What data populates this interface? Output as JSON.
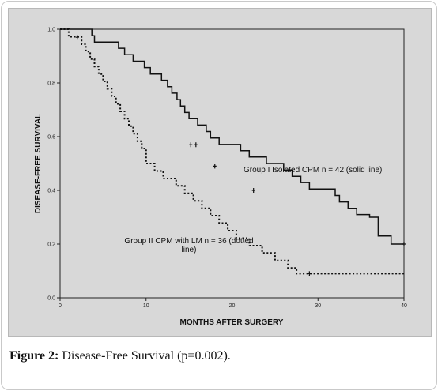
{
  "caption": {
    "label": "Figure 2:",
    "text": "Disease-Free Survival (p=0.002)."
  },
  "chart_data": {
    "type": "line",
    "title": "",
    "xlabel": "MONTHS AFTER SURGERY",
    "ylabel": "DISEASE-FREE SURVIVAL",
    "xlim": [
      0,
      40
    ],
    "ylim": [
      0,
      1.0
    ],
    "xticks": [
      0,
      10,
      20,
      30,
      40
    ],
    "yticks": [
      0.0,
      0.2,
      0.4,
      0.6,
      0.8,
      1.0
    ],
    "ytick_labels": [
      "0.0",
      "0.2",
      "0.4",
      "0.6",
      "0.8",
      "1.0"
    ],
    "grid": false,
    "annotations": [
      {
        "lines": [
          "Group I Isolated CPM n = 42 (solid line)"
        ]
      },
      {
        "lines": [
          "Group II CPM with LM n = 36 (dotted",
          "line)"
        ]
      }
    ],
    "series": [
      {
        "name": "Group I Isolated CPM n = 42",
        "style": "solid",
        "points": [
          [
            0,
            1.0
          ],
          [
            3.7,
            1.0
          ],
          [
            3.7,
            0.976
          ],
          [
            4,
            0.976
          ],
          [
            4,
            0.952
          ],
          [
            6.8,
            0.952
          ],
          [
            6.8,
            0.929
          ],
          [
            7.5,
            0.929
          ],
          [
            7.5,
            0.905
          ],
          [
            8.5,
            0.905
          ],
          [
            8.5,
            0.881
          ],
          [
            9.8,
            0.881
          ],
          [
            9.8,
            0.857
          ],
          [
            10.5,
            0.857
          ],
          [
            10.5,
            0.833
          ],
          [
            11.8,
            0.833
          ],
          [
            11.8,
            0.81
          ],
          [
            12.5,
            0.81
          ],
          [
            12.5,
            0.786
          ],
          [
            13,
            0.786
          ],
          [
            13,
            0.762
          ],
          [
            13.6,
            0.762
          ],
          [
            13.6,
            0.738
          ],
          [
            14,
            0.738
          ],
          [
            14,
            0.714
          ],
          [
            14.5,
            0.714
          ],
          [
            14.5,
            0.69
          ],
          [
            15,
            0.69
          ],
          [
            15,
            0.667
          ],
          [
            16,
            0.667
          ],
          [
            16,
            0.643
          ],
          [
            17,
            0.643
          ],
          [
            17,
            0.619
          ],
          [
            17.5,
            0.619
          ],
          [
            17.5,
            0.595
          ],
          [
            18.5,
            0.595
          ],
          [
            18.5,
            0.571
          ],
          [
            21,
            0.571
          ],
          [
            21,
            0.548
          ],
          [
            22,
            0.548
          ],
          [
            22,
            0.524
          ],
          [
            24,
            0.524
          ],
          [
            24,
            0.5
          ],
          [
            26,
            0.5
          ],
          [
            26,
            0.476
          ],
          [
            27,
            0.476
          ],
          [
            27,
            0.452
          ],
          [
            28,
            0.452
          ],
          [
            28,
            0.429
          ],
          [
            29,
            0.429
          ],
          [
            29,
            0.405
          ],
          [
            32,
            0.405
          ],
          [
            32,
            0.381
          ],
          [
            32.5,
            0.381
          ],
          [
            32.5,
            0.357
          ],
          [
            33.5,
            0.357
          ],
          [
            33.5,
            0.333
          ],
          [
            34.5,
            0.333
          ],
          [
            34.5,
            0.31
          ],
          [
            36,
            0.31
          ],
          [
            36,
            0.3
          ],
          [
            37,
            0.3
          ],
          [
            37,
            0.23
          ],
          [
            38.5,
            0.23
          ],
          [
            38.5,
            0.2
          ],
          [
            40,
            0.2
          ]
        ],
        "censored": [
          [
            15.2,
            0.57
          ],
          [
            15.8,
            0.57
          ],
          [
            18,
            0.49
          ],
          [
            22.5,
            0.4
          ],
          [
            40,
            0.2
          ]
        ]
      },
      {
        "name": "Group II CPM with LM n = 36",
        "style": "dotted",
        "points": [
          [
            0,
            1.0
          ],
          [
            1,
            1.0
          ],
          [
            1,
            0.972
          ],
          [
            2.5,
            0.972
          ],
          [
            2.5,
            0.944
          ],
          [
            3,
            0.944
          ],
          [
            3,
            0.917
          ],
          [
            3.5,
            0.917
          ],
          [
            3.5,
            0.889
          ],
          [
            4,
            0.889
          ],
          [
            4,
            0.861
          ],
          [
            4.5,
            0.861
          ],
          [
            4.5,
            0.833
          ],
          [
            5,
            0.833
          ],
          [
            5,
            0.806
          ],
          [
            5.5,
            0.806
          ],
          [
            5.5,
            0.778
          ],
          [
            6,
            0.778
          ],
          [
            6,
            0.75
          ],
          [
            6.5,
            0.75
          ],
          [
            6.5,
            0.722
          ],
          [
            7,
            0.722
          ],
          [
            7,
            0.694
          ],
          [
            7.5,
            0.694
          ],
          [
            7.5,
            0.667
          ],
          [
            8,
            0.667
          ],
          [
            8,
            0.639
          ],
          [
            8.5,
            0.639
          ],
          [
            8.5,
            0.611
          ],
          [
            9,
            0.611
          ],
          [
            9,
            0.583
          ],
          [
            9.5,
            0.583
          ],
          [
            9.5,
            0.556
          ],
          [
            10,
            0.556
          ],
          [
            10,
            0.5
          ],
          [
            11,
            0.5
          ],
          [
            11,
            0.472
          ],
          [
            12,
            0.472
          ],
          [
            12,
            0.444
          ],
          [
            13.5,
            0.444
          ],
          [
            13.5,
            0.417
          ],
          [
            14.5,
            0.417
          ],
          [
            14.5,
            0.389
          ],
          [
            15.5,
            0.389
          ],
          [
            15.5,
            0.361
          ],
          [
            16.5,
            0.361
          ],
          [
            16.5,
            0.333
          ],
          [
            17.5,
            0.333
          ],
          [
            17.5,
            0.306
          ],
          [
            18.5,
            0.306
          ],
          [
            18.5,
            0.278
          ],
          [
            19.5,
            0.278
          ],
          [
            19.5,
            0.25
          ],
          [
            20.5,
            0.25
          ],
          [
            20.5,
            0.222
          ],
          [
            22,
            0.222
          ],
          [
            22,
            0.194
          ],
          [
            23.5,
            0.194
          ],
          [
            23.5,
            0.167
          ],
          [
            25,
            0.167
          ],
          [
            25,
            0.139
          ],
          [
            26.5,
            0.139
          ],
          [
            26.5,
            0.111
          ],
          [
            27.5,
            0.111
          ],
          [
            27.5,
            0.09
          ],
          [
            40,
            0.09
          ]
        ],
        "censored": [
          [
            2,
            0.97
          ],
          [
            29,
            0.09
          ]
        ]
      }
    ]
  }
}
